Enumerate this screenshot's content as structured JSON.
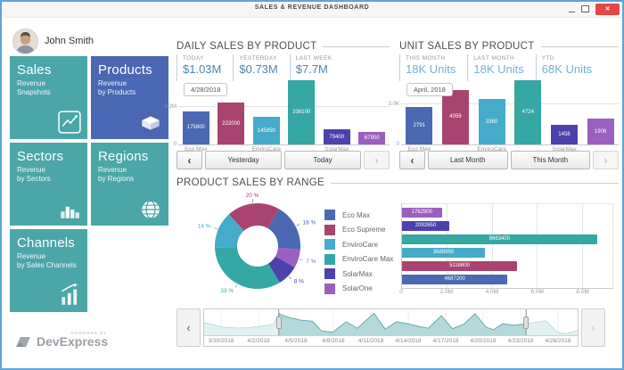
{
  "window": {
    "title": "SALES & REVENUE DASHBOARD",
    "close_glyph": "✕"
  },
  "user": {
    "name": "John Smith"
  },
  "sidebar": {
    "tiles": [
      {
        "title": "Sales",
        "line1": "Revenue",
        "line2": "Snapshots",
        "color": "#4ba6a8",
        "icon": "line-chart-icon"
      },
      {
        "title": "Products",
        "line1": "Revenue",
        "line2": "by Products",
        "color": "#4a67b4",
        "icon": "box-icon"
      },
      {
        "title": "Sectors",
        "line1": "Revenue",
        "line2": "by Sectors",
        "color": "#4ba6a8",
        "icon": "bar-chart-icon"
      },
      {
        "title": "Regions",
        "line1": "Revenue",
        "line2": "by Regions",
        "color": "#4ba6a8",
        "icon": "globe-icon"
      },
      {
        "title": "Channels",
        "line1": "Revenue",
        "line2": "by Sales Channels",
        "color": "#4ba6a8",
        "icon": "sales-channels-icon"
      }
    ]
  },
  "colors": {
    "Eco Max": "#4a69b2",
    "Eco Supreme": "#a94470",
    "EnviroCare": "#44abca",
    "EnviroCare Max": "#35a7a4",
    "SolarMax": "#4d41ad",
    "SolarOne": "#9b5fc0",
    "kpi_daily_value": "#4d87b0",
    "kpi_unit_value": "#74b2d3",
    "close_button": "#e04848",
    "selector_selected_fill": "#b4d9da",
    "selector_selected_line": "#5fa9ab",
    "selector_dim_fill": "#e2f1f1",
    "selector_dim_line": "#b9d9da"
  },
  "daily": {
    "header": "DAILY SALES BY PRODUCT",
    "kpis": [
      {
        "label": "TODAY",
        "value": "$1.03M"
      },
      {
        "label": "YESTERDAY",
        "value": "$0.73M"
      },
      {
        "label": "LAST WEEK",
        "value": "$7.7M"
      }
    ],
    "nav": {
      "prev": "‹",
      "first": "Yesterday",
      "second": "Today",
      "next": "›"
    }
  },
  "unit": {
    "header": "UNIT SALES BY PRODUCT",
    "kpis": [
      {
        "label": "THIS MONTH",
        "value": "18K Units"
      },
      {
        "label": "LAST MONTH",
        "value": "18K Units"
      },
      {
        "label": "YTD",
        "value": "68K Units"
      }
    ],
    "nav": {
      "prev": "‹",
      "first": "Last Month",
      "second": "This Month",
      "next": "›"
    }
  },
  "range": {
    "header": "PRODUCT SALES BY RANGE",
    "legend": [
      "Eco Max",
      "Eco Supreme",
      "EnviroCare",
      "EnviroCare Max",
      "SolarMax",
      "SolarOne"
    ],
    "selector_nav": {
      "prev": "‹",
      "next": "›"
    }
  },
  "footer": {
    "powered_by": "POWERED BY",
    "brand": "DevExpress"
  },
  "chart_data": [
    {
      "id": "daily_sales_bars",
      "type": "bar",
      "period": "4/28/2018",
      "categories": [
        "Eco Max",
        "Eco Supreme",
        "EnviroCare",
        "EnviroCare Max",
        "SolarMax",
        "SolarOne"
      ],
      "values": [
        175800,
        222000,
        145850,
        338100,
        79400,
        67900
      ],
      "axis_max": 340000,
      "gridline": {
        "label": "0.2M",
        "value": 200000
      },
      "zero_label": "0",
      "x_axis_labels": [
        "Eco Max",
        "EnviroCare",
        "SolarMax"
      ]
    },
    {
      "id": "unit_sales_bars",
      "type": "bar",
      "period": "April, 2018",
      "categories": [
        "Eco Max",
        "Eco Supreme",
        "EnviroCare",
        "EnviroCare Max",
        "SolarMax",
        "SolarOne"
      ],
      "values": [
        2791,
        4059,
        3360,
        4724,
        1458,
        1906
      ],
      "axis_max": 4750,
      "gridline": {
        "label": "3.0K",
        "value": 3000
      },
      "zero_label": "0",
      "x_axis_labels": [
        "Eco Max",
        "EnviroCare",
        "SolarMax"
      ]
    },
    {
      "id": "product_share_donut",
      "type": "pie",
      "start_angle_deg": 30,
      "slices": [
        {
          "name": "Eco Max",
          "pct": 18
        },
        {
          "name": "SolarOne",
          "pct": 7
        },
        {
          "name": "SolarMax",
          "pct": 8
        },
        {
          "name": "EnviroCare Max",
          "pct": 33
        },
        {
          "name": "EnviroCare",
          "pct": 14
        },
        {
          "name": "Eco Supreme",
          "pct": 20
        }
      ]
    },
    {
      "id": "product_sales_hbars",
      "type": "bar-horizontal",
      "rows": [
        {
          "name": "SolarOne",
          "value": 1762900
        },
        {
          "name": "SolarMax",
          "value": 2092650
        },
        {
          "name": "EnviroCare Max",
          "value": 8663400
        },
        {
          "name": "EnviroCare",
          "value": 3689950
        },
        {
          "name": "Eco Supreme",
          "value": 5118800
        },
        {
          "name": "Eco Max",
          "value": 4687200
        }
      ],
      "axis_max": 9350000,
      "ticks": [
        {
          "label": "0",
          "value": 0
        },
        {
          "label": "2.0M",
          "value": 2000000
        },
        {
          "label": "4.0M",
          "value": 4000000
        },
        {
          "label": "6.0M",
          "value": 6000000
        },
        {
          "label": "8.0M",
          "value": 8000000
        }
      ]
    },
    {
      "id": "date_range_selector",
      "type": "area",
      "dates": [
        "3/30/2018",
        "4/2/2018",
        "4/5/2018",
        "4/8/2018",
        "4/11/2018",
        "4/14/2018",
        "4/17/2018",
        "4/20/2018",
        "4/23/2018",
        "4/26/2018"
      ],
      "selection": [
        0.2,
        0.862
      ],
      "points": [
        [
          0,
          0.5
        ],
        [
          0.025,
          0.42
        ],
        [
          0.05,
          0.32
        ],
        [
          0.09,
          0.29
        ],
        [
          0.12,
          0.3
        ],
        [
          0.15,
          0.36
        ],
        [
          0.185,
          0.42
        ],
        [
          0.2,
          0.86
        ],
        [
          0.23,
          0.7
        ],
        [
          0.26,
          0.6
        ],
        [
          0.29,
          0.56
        ],
        [
          0.315,
          0.16
        ],
        [
          0.345,
          0.12
        ],
        [
          0.38,
          0.54
        ],
        [
          0.41,
          0.28
        ],
        [
          0.455,
          0.88
        ],
        [
          0.485,
          0.24
        ],
        [
          0.515,
          0.54
        ],
        [
          0.545,
          0.46
        ],
        [
          0.575,
          0.35
        ],
        [
          0.6,
          0.28
        ],
        [
          0.635,
          0.78
        ],
        [
          0.665,
          0.26
        ],
        [
          0.695,
          0.44
        ],
        [
          0.725,
          0.86
        ],
        [
          0.755,
          0.32
        ],
        [
          0.775,
          0.22
        ],
        [
          0.8,
          0.46
        ],
        [
          0.83,
          0.4
        ],
        [
          0.862,
          0.46
        ],
        [
          0.89,
          0.52
        ],
        [
          0.915,
          0.58
        ],
        [
          0.945,
          0.12
        ],
        [
          0.97,
          0.06
        ],
        [
          1,
          0.2
        ]
      ]
    }
  ]
}
